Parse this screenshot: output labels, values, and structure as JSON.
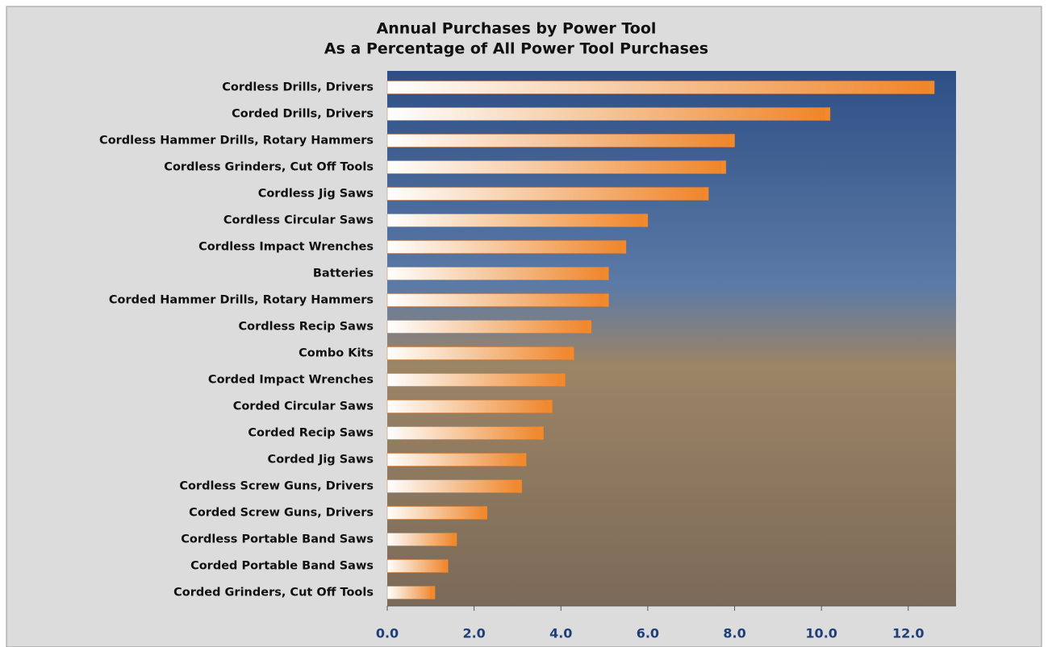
{
  "chart_data": {
    "type": "bar",
    "orientation": "horizontal",
    "title": "Annual Purchases by Power Tool",
    "subtitle": "As a Percentage of All Power Tool Purchases",
    "categories": [
      "Cordless Drills, Drivers",
      "Corded Drills, Drivers",
      "Cordless Hammer Drills, Rotary Hammers",
      "Cordless Grinders, Cut Off Tools",
      "Cordless Jig Saws",
      "Cordless Circular Saws",
      "Cordless Impact Wrenches",
      "Batteries",
      "Corded Hammer Drills, Rotary Hammers",
      "Cordless Recip Saws",
      "Combo Kits",
      "Corded Impact Wrenches",
      "Corded Circular Saws",
      "Corded Recip Saws",
      "Corded Jig Saws",
      "Cordless Screw Guns, Drivers",
      "Corded Screw Guns, Drivers",
      "Cordless Portable Band Saws",
      "Corded Portable Band Saws",
      "Corded Grinders, Cut Off Tools"
    ],
    "values": [
      12.6,
      10.2,
      8.0,
      7.8,
      7.4,
      6.0,
      5.5,
      5.1,
      5.1,
      4.7,
      4.3,
      4.1,
      3.8,
      3.6,
      3.2,
      3.1,
      2.3,
      1.6,
      1.4,
      1.1
    ],
    "color": "#f08a2c",
    "xlim": [
      0,
      13.1
    ],
    "xticks": [
      {
        "value": 0,
        "label": "0.0"
      },
      {
        "value": 2,
        "label": "2.0"
      },
      {
        "value": 4,
        "label": "4.0"
      },
      {
        "value": 6,
        "label": "6.0"
      },
      {
        "value": 8,
        "label": "8.0"
      },
      {
        "value": 10,
        "label": "10.0"
      },
      {
        "value": 12,
        "label": "12.0"
      }
    ]
  }
}
